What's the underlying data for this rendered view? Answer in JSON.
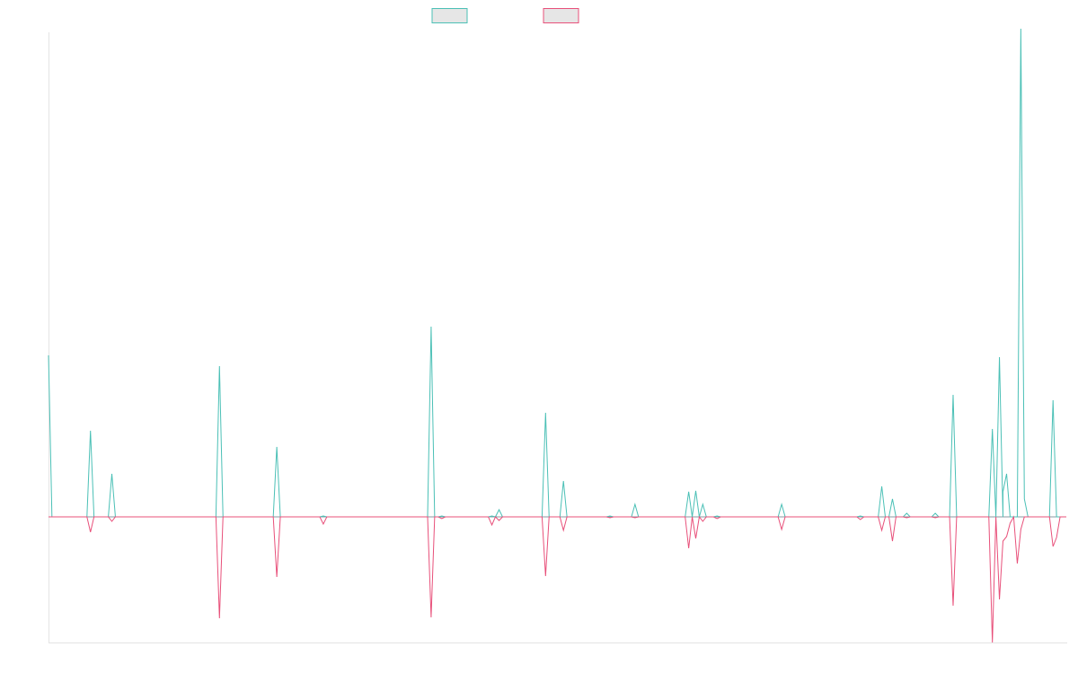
{
  "colors": {
    "series_a": "#4bc0b6",
    "series_b": "#e8507a",
    "axis": "#e4e4e4",
    "legend_fill": "#e6e6e6"
  },
  "chart_data": {
    "type": "line",
    "title": "",
    "xlabel": "",
    "ylabel": "",
    "legend_position": "top-center",
    "grid": false,
    "ylim": [
      -280,
      1080
    ],
    "xlim": [
      0,
      98
    ],
    "series": [
      {
        "label": "",
        "color": "#4bc0b6",
        "points": [
          [
            0,
            360
          ],
          [
            0.33,
            0
          ],
          [
            3.7,
            0
          ],
          [
            4.04,
            192
          ],
          [
            4.38,
            0
          ],
          [
            5.76,
            0
          ],
          [
            6.1,
            96
          ],
          [
            6.44,
            0
          ],
          [
            16.12,
            0
          ],
          [
            16.46,
            336
          ],
          [
            16.8,
            0
          ],
          [
            21.64,
            0
          ],
          [
            21.98,
            156
          ],
          [
            22.32,
            0
          ],
          [
            26.12,
            0
          ],
          [
            26.46,
            2
          ],
          [
            26.8,
            0
          ],
          [
            36.5,
            0
          ],
          [
            36.84,
            424
          ],
          [
            37.18,
            0
          ],
          [
            37.53,
            0
          ],
          [
            37.87,
            2
          ],
          [
            38.21,
            0
          ],
          [
            42.35,
            0
          ],
          [
            42.69,
            2
          ],
          [
            43.03,
            0
          ],
          [
            43.38,
            16
          ],
          [
            43.72,
            0
          ],
          [
            47.52,
            0
          ],
          [
            47.86,
            232
          ],
          [
            48.2,
            0
          ],
          [
            49.24,
            0
          ],
          [
            49.58,
            80
          ],
          [
            49.92,
            0
          ],
          [
            53.72,
            0
          ],
          [
            54.06,
            2
          ],
          [
            54.4,
            0
          ],
          [
            56.13,
            0
          ],
          [
            56.47,
            28
          ],
          [
            56.81,
            0
          ],
          [
            61.3,
            0
          ],
          [
            61.64,
            56
          ],
          [
            61.98,
            0
          ],
          [
            61.98,
            0
          ],
          [
            62.32,
            58
          ],
          [
            62.66,
            0
          ],
          [
            62.66,
            0
          ],
          [
            63.0,
            28
          ],
          [
            63.34,
            0
          ],
          [
            64.03,
            0
          ],
          [
            64.37,
            2
          ],
          [
            64.71,
            0
          ],
          [
            70.25,
            0
          ],
          [
            70.59,
            28
          ],
          [
            70.93,
            0
          ],
          [
            77.83,
            0
          ],
          [
            78.17,
            2
          ],
          [
            78.51,
            0
          ],
          [
            79.89,
            0
          ],
          [
            80.23,
            68
          ],
          [
            80.57,
            0
          ],
          [
            80.92,
            0
          ],
          [
            81.26,
            40
          ],
          [
            81.6,
            0
          ],
          [
            82.29,
            0
          ],
          [
            82.63,
            8
          ],
          [
            82.97,
            0
          ],
          [
            85.04,
            0
          ],
          [
            85.38,
            8
          ],
          [
            85.72,
            0
          ],
          [
            86.76,
            0
          ],
          [
            87.1,
            272
          ],
          [
            87.44,
            0
          ],
          [
            90.54,
            0
          ],
          [
            90.88,
            196
          ],
          [
            91.22,
            0
          ],
          [
            91.22,
            0
          ],
          [
            91.56,
            356
          ],
          [
            91.9,
            0
          ],
          [
            91.9,
            56
          ],
          [
            92.25,
            96
          ],
          [
            92.59,
            0
          ],
          [
            93.28,
            0
          ],
          [
            93.62,
            1088
          ],
          [
            93.96,
            40
          ],
          [
            94.31,
            0
          ],
          [
            96.38,
            0
          ],
          [
            96.72,
            260
          ],
          [
            97.06,
            0
          ],
          [
            98.0,
            0
          ]
        ]
      },
      {
        "label": "",
        "color": "#e8507a",
        "points": [
          [
            0,
            0
          ],
          [
            3.7,
            0
          ],
          [
            4.04,
            -34
          ],
          [
            4.38,
            0
          ],
          [
            5.76,
            0
          ],
          [
            6.1,
            -10
          ],
          [
            6.44,
            0
          ],
          [
            16.12,
            0
          ],
          [
            16.46,
            -226
          ],
          [
            16.8,
            0
          ],
          [
            21.64,
            0
          ],
          [
            21.98,
            -134
          ],
          [
            22.32,
            0
          ],
          [
            26.12,
            0
          ],
          [
            26.46,
            -16
          ],
          [
            26.8,
            0
          ],
          [
            36.5,
            0
          ],
          [
            36.84,
            -224
          ],
          [
            37.18,
            0
          ],
          [
            37.53,
            0
          ],
          [
            37.87,
            -4
          ],
          [
            38.21,
            0
          ],
          [
            42.35,
            0
          ],
          [
            42.69,
            -18
          ],
          [
            43.03,
            0
          ],
          [
            43.38,
            -8
          ],
          [
            43.72,
            0
          ],
          [
            47.52,
            0
          ],
          [
            47.86,
            -132
          ],
          [
            48.2,
            0
          ],
          [
            49.24,
            0
          ],
          [
            49.58,
            -30
          ],
          [
            49.92,
            0
          ],
          [
            53.72,
            0
          ],
          [
            54.06,
            -2
          ],
          [
            54.4,
            0
          ],
          [
            56.13,
            0
          ],
          [
            56.47,
            -2
          ],
          [
            56.81,
            0
          ],
          [
            61.3,
            0
          ],
          [
            61.64,
            -70
          ],
          [
            61.98,
            0
          ],
          [
            61.98,
            0
          ],
          [
            62.32,
            -48
          ],
          [
            62.66,
            0
          ],
          [
            62.66,
            0
          ],
          [
            63.0,
            -10
          ],
          [
            63.34,
            0
          ],
          [
            64.03,
            0
          ],
          [
            64.37,
            -4
          ],
          [
            64.71,
            0
          ],
          [
            70.25,
            0
          ],
          [
            70.59,
            -28
          ],
          [
            70.93,
            0
          ],
          [
            77.83,
            0
          ],
          [
            78.17,
            -6
          ],
          [
            78.51,
            0
          ],
          [
            79.89,
            0
          ],
          [
            80.23,
            -30
          ],
          [
            80.57,
            0
          ],
          [
            80.92,
            0
          ],
          [
            81.26,
            -54
          ],
          [
            81.6,
            0
          ],
          [
            82.29,
            0
          ],
          [
            82.63,
            -2
          ],
          [
            82.97,
            0
          ],
          [
            85.04,
            0
          ],
          [
            85.38,
            -2
          ],
          [
            85.72,
            0
          ],
          [
            86.76,
            0
          ],
          [
            87.1,
            -198
          ],
          [
            87.44,
            0
          ],
          [
            90.54,
            0
          ],
          [
            90.88,
            -280
          ],
          [
            91.22,
            0
          ],
          [
            91.22,
            0
          ],
          [
            91.56,
            -184
          ],
          [
            91.9,
            -54
          ],
          [
            92.25,
            -44
          ],
          [
            92.59,
            -14
          ],
          [
            92.93,
            0
          ],
          [
            93.28,
            -104
          ],
          [
            93.62,
            -28
          ],
          [
            93.96,
            0
          ],
          [
            96.38,
            0
          ],
          [
            96.72,
            -66
          ],
          [
            97.06,
            -46
          ],
          [
            97.4,
            0
          ],
          [
            98.0,
            0
          ]
        ]
      }
    ]
  }
}
